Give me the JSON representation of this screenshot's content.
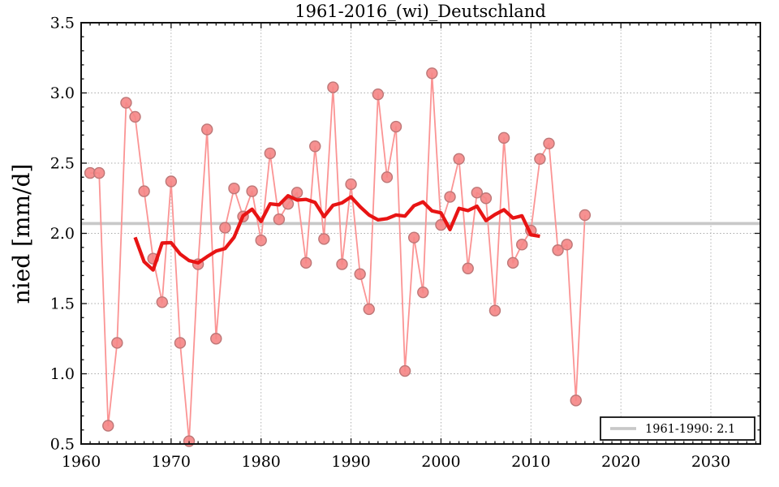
{
  "chart_data": {
    "type": "line",
    "title": "1961-2016_(wi)_Deutschland",
    "xlabel": "",
    "ylabel": "nied [mm/d]",
    "xlim": [
      1960,
      2035.5
    ],
    "ylim": [
      0.5,
      3.5
    ],
    "x_ticks": [
      "1960",
      "1970",
      "1980",
      "1990",
      "2000",
      "2010",
      "2020",
      "2030"
    ],
    "y_ticks": [
      "0.5",
      "1.0",
      "1.5",
      "2.0",
      "2.5",
      "3.0",
      "3.5"
    ],
    "grid": true,
    "series": [
      {
        "name": "annual_winter_precipitation",
        "type": "scatter+line",
        "start_year": 1961,
        "end_year": 2016,
        "line_color": "#fb9494",
        "marker_fill": "#f58585",
        "marker_edge": "#bd7777",
        "values": [
          2.43,
          2.43,
          0.63,
          1.22,
          2.93,
          2.83,
          2.3,
          1.82,
          1.51,
          2.37,
          1.22,
          0.52,
          1.78,
          2.74,
          1.25,
          2.04,
          2.32,
          2.12,
          2.3,
          1.95,
          2.57,
          2.1,
          2.21,
          2.29,
          1.79,
          2.62,
          1.96,
          3.04,
          1.78,
          2.35,
          1.71,
          1.46,
          2.99,
          2.4,
          2.76,
          1.02,
          1.97,
          1.58,
          3.14,
          2.06,
          2.26,
          2.53,
          1.75,
          2.29,
          2.25,
          1.45,
          2.68,
          1.79,
          1.92,
          2.02,
          2.53,
          2.64,
          1.88,
          1.92,
          0.81,
          2.13
        ]
      },
      {
        "name": "running_mean_11yr",
        "type": "line",
        "window": 11,
        "start_year": 1966,
        "end_year": 2011,
        "line_color": "#e81414",
        "values": [
          1.972,
          1.798,
          1.739,
          1.931,
          1.934,
          1.853,
          1.806,
          1.79,
          1.834,
          1.874,
          1.892,
          1.972,
          2.125,
          2.172,
          2.085,
          2.21,
          2.203,
          2.268,
          2.237,
          2.242,
          2.22,
          2.119,
          2.2,
          2.217,
          2.26,
          2.19,
          2.131,
          2.096,
          2.105,
          2.131,
          2.123,
          2.197,
          2.224,
          2.16,
          2.146,
          2.027,
          2.178,
          2.162,
          2.193,
          2.091,
          2.134,
          2.168,
          2.109,
          2.125,
          1.99,
          1.979
        ]
      },
      {
        "name": "reference_mean_1961_1990",
        "type": "hline",
        "value": 2.07,
        "label": "1961-1990: 2.1",
        "line_color": "#c8c8c8"
      }
    ],
    "legend": {
      "position": "lower right",
      "entries": [
        {
          "label": "1961-1990: 2.1",
          "sample_color": "#c8c8c8"
        }
      ]
    },
    "colors": {
      "grid": "#a8a8a8",
      "spine": "#111111",
      "background": "#ffffff"
    }
  }
}
